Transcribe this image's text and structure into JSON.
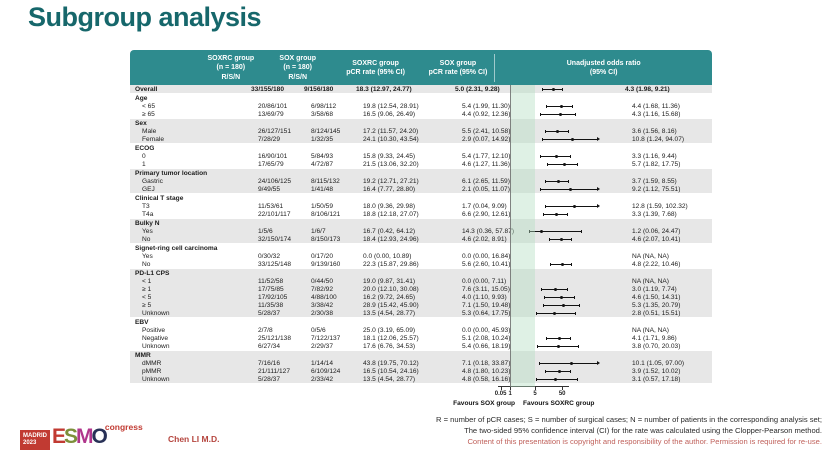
{
  "slide": {
    "title": "Subgroup analysis",
    "presenter": "Chen LI M.D.",
    "footnote_line1": "R = number of pCR cases; S = number of surgical cases; N = number of patients in the corresponding analysis set;",
    "footnote_line2": "The two-sided 95% confidence interval (CI) for the rate was calculated using the Clopper-Pearson method.",
    "copyright": "Content of this presentation is copyright and responsibility of the author. Permission is required for re-use.",
    "logo": {
      "city": "MADRID",
      "year": "2023",
      "letters": [
        {
          "ch": "E",
          "color": "#C13A32"
        },
        {
          "ch": "S",
          "color": "#7C8F3A"
        },
        {
          "ch": "M",
          "color": "#B0368C"
        },
        {
          "ch": "O",
          "color": "#283157"
        }
      ],
      "congress": "congress"
    }
  },
  "colors": {
    "header_teal": "#2E8B8E",
    "title_teal": "#16676B",
    "row_gray": "#E7E7E7",
    "band_green": "#B2DDC1",
    "accent_red": "#C0504D"
  },
  "table": {
    "header": {
      "col_soxrc_rsn": [
        "SOXRC group",
        "(n = 180)",
        "R/S/N"
      ],
      "col_sox_rsn": [
        "SOX group",
        "(n = 180)",
        "R/S/N"
      ],
      "col_soxrc_pcr": [
        "SOXRC group",
        "pCR rate (95% CI)"
      ],
      "col_sox_pcr": [
        "SOX group",
        "pCR rate (95% CI)"
      ],
      "col_or": [
        "Unadjusted odds ratio",
        "(95% CI)"
      ]
    },
    "axis": {
      "ticks": [
        0.05,
        1,
        5,
        50
      ],
      "tick_labels": [
        "0.05",
        "1",
        "5",
        "50"
      ],
      "reference_line": 1,
      "highlight_band": [
        1,
        5
      ],
      "favours_left": "Favours SOX group",
      "favours_right": "Favours SOXRC group"
    },
    "rows": [
      {
        "type": "overall",
        "label": "Overall",
        "soxrc_rsn": "33/155/180",
        "sox_rsn": "9/156/180",
        "soxrc_pcr": "18.3 (12.97, 24.77)",
        "sox_pcr": "5.0 (2.31, 9.28)",
        "or_text": "4.3 (1.98, 9.21)",
        "or": 4.3,
        "lo": 1.98,
        "hi": 9.21
      },
      {
        "type": "group",
        "label": "Age"
      },
      {
        "type": "item",
        "label": "< 65",
        "soxrc_rsn": "20/86/101",
        "sox_rsn": "6/98/112",
        "soxrc_pcr": "19.8 (12.54, 28.91)",
        "sox_pcr": "5.4 (1.99, 11.30)",
        "or_text": "4.4 (1.68, 11.36)",
        "or": 4.4,
        "lo": 1.68,
        "hi": 11.36
      },
      {
        "type": "item",
        "label": "≥ 65",
        "soxrc_rsn": "13/69/79",
        "sox_rsn": "3/58/68",
        "soxrc_pcr": "16.5 (9.06, 26.49)",
        "sox_pcr": "4.4 (0.92, 12.36)",
        "or_text": "4.3 (1.16, 15.68)",
        "or": 4.3,
        "lo": 1.16,
        "hi": 15.68
      },
      {
        "type": "group",
        "label": "Sex"
      },
      {
        "type": "item",
        "label": "Male",
        "soxrc_rsn": "26/127/151",
        "sox_rsn": "8/124/145",
        "soxrc_pcr": "17.2 (11.57, 24.20)",
        "sox_pcr": "5.5 (2.41, 10.58)",
        "or_text": "3.6 (1.56, 8.16)",
        "or": 3.6,
        "lo": 1.56,
        "hi": 8.16
      },
      {
        "type": "item",
        "label": "Female",
        "soxrc_rsn": "7/28/29",
        "sox_rsn": "1/32/35",
        "soxrc_pcr": "24.1 (10.30, 43.54)",
        "sox_pcr": "2.9 (0.07, 14.92)",
        "or_text": "10.8 (1.24, 94.07)",
        "or": 10.8,
        "lo": 1.24,
        "hi": 94.07
      },
      {
        "type": "group",
        "label": "ECOG"
      },
      {
        "type": "item",
        "label": "0",
        "soxrc_rsn": "16/90/101",
        "sox_rsn": "5/84/93",
        "soxrc_pcr": "15.8 (9.33, 24.45)",
        "sox_pcr": "5.4 (1.77, 12.10)",
        "or_text": "3.3 (1.16, 9.44)",
        "or": 3.3,
        "lo": 1.16,
        "hi": 9.44
      },
      {
        "type": "item",
        "label": "1",
        "soxrc_rsn": "17/65/79",
        "sox_rsn": "4/72/87",
        "soxrc_pcr": "21.5 (13.06, 32.20)",
        "sox_pcr": "4.6 (1.27, 11.36)",
        "or_text": "5.7 (1.82, 17.75)",
        "or": 5.7,
        "lo": 1.82,
        "hi": 17.75
      },
      {
        "type": "group",
        "label": "Primary tumor location"
      },
      {
        "type": "item",
        "label": "Gastric",
        "soxrc_rsn": "24/106/125",
        "sox_rsn": "8/115/132",
        "soxrc_pcr": "19.2 (12.71, 27.21)",
        "sox_pcr": "6.1 (2.65, 11.59)",
        "or_text": "3.7 (1.59, 8.55)",
        "or": 3.7,
        "lo": 1.59,
        "hi": 8.55
      },
      {
        "type": "item",
        "label": "GEJ",
        "soxrc_rsn": "9/49/55",
        "sox_rsn": "1/41/48",
        "soxrc_pcr": "16.4 (7.77, 28.80)",
        "sox_pcr": "2.1 (0.05, 11.07)",
        "or_text": "9.2 (1.12, 75.51)",
        "or": 9.2,
        "lo": 1.12,
        "hi": 75.51
      },
      {
        "type": "group",
        "label": "Clinical T stage"
      },
      {
        "type": "item",
        "label": "T3",
        "soxrc_rsn": "11/53/61",
        "sox_rsn": "1/50/59",
        "soxrc_pcr": "18.0 (9.36, 29.98)",
        "sox_pcr": "1.7 (0.04, 9.09)",
        "or_text": "12.8 (1.59, 102.32)",
        "or": 12.8,
        "lo": 1.59,
        "hi": 102.32
      },
      {
        "type": "item",
        "label": "T4a",
        "soxrc_rsn": "22/101/117",
        "sox_rsn": "8/106/121",
        "soxrc_pcr": "18.8 (12.18, 27.07)",
        "sox_pcr": "6.6 (2.90, 12.61)",
        "or_text": "3.3 (1.39, 7.68)",
        "or": 3.3,
        "lo": 1.39,
        "hi": 7.68
      },
      {
        "type": "group",
        "label": "Bulky N"
      },
      {
        "type": "item",
        "label": "Yes",
        "soxrc_rsn": "1/5/6",
        "sox_rsn": "1/6/7",
        "soxrc_pcr": "16.7 (0.42, 64.12)",
        "sox_pcr": "14.3 (0.36, 57.87)",
        "or_text": "1.2 (0.06, 24.47)",
        "or": 1.2,
        "lo": 0.06,
        "hi": 24.47
      },
      {
        "type": "item",
        "label": "No",
        "soxrc_rsn": "32/150/174",
        "sox_rsn": "8/150/173",
        "soxrc_pcr": "18.4 (12.93, 24.96)",
        "sox_pcr": "4.6 (2.02, 8.91)",
        "or_text": "4.6 (2.07, 10.41)",
        "or": 4.6,
        "lo": 2.07,
        "hi": 10.41
      },
      {
        "type": "group",
        "label": "Signet-ring cell carcinoma"
      },
      {
        "type": "item",
        "label": "Yes",
        "soxrc_rsn": "0/30/32",
        "sox_rsn": "0/17/20",
        "soxrc_pcr": "0.0 (0.00, 10.89)",
        "sox_pcr": "0.0 (0.00, 16.84)",
        "or_text": "NA (NA, NA)",
        "or": null,
        "lo": null,
        "hi": null
      },
      {
        "type": "item",
        "label": "No",
        "soxrc_rsn": "33/125/148",
        "sox_rsn": "9/139/160",
        "soxrc_pcr": "22.3 (15.87, 29.86)",
        "sox_pcr": "5.6 (2.60, 10.41)",
        "or_text": "4.8 (2.22, 10.46)",
        "or": 4.8,
        "lo": 2.22,
        "hi": 10.46
      },
      {
        "type": "group",
        "label": "PD-L1 CPS"
      },
      {
        "type": "item",
        "label": "< 1",
        "soxrc_rsn": "11/52/58",
        "sox_rsn": "0/44/50",
        "soxrc_pcr": "19.0 (9.87, 31.41)",
        "sox_pcr": "0.0 (0.00, 7.11)",
        "or_text": "NA (NA, NA)",
        "or": null,
        "lo": null,
        "hi": null
      },
      {
        "type": "item",
        "label": "≥ 1",
        "soxrc_rsn": "17/75/85",
        "sox_rsn": "7/82/92",
        "soxrc_pcr": "20.0 (12.10, 30.08)",
        "sox_pcr": "7.6 (3.11, 15.05)",
        "or_text": "3.0 (1.19, 7.74)",
        "or": 3.0,
        "lo": 1.19,
        "hi": 7.74
      },
      {
        "type": "item",
        "label": "< 5",
        "soxrc_rsn": "17/92/105",
        "sox_rsn": "4/88/100",
        "soxrc_pcr": "16.2 (9.72, 24.65)",
        "sox_pcr": "4.0 (1.10, 9.93)",
        "or_text": "4.6 (1.50, 14.31)",
        "or": 4.6,
        "lo": 1.5,
        "hi": 14.31
      },
      {
        "type": "item",
        "label": "≥ 5",
        "soxrc_rsn": "11/35/38",
        "sox_rsn": "3/38/42",
        "soxrc_pcr": "28.9 (15.42, 45.90)",
        "sox_pcr": "7.1 (1.50, 19.48)",
        "or_text": "5.3 (1.35, 20.79)",
        "or": 5.3,
        "lo": 1.35,
        "hi": 20.79
      },
      {
        "type": "item",
        "label": "Unknown",
        "soxrc_rsn": "5/28/37",
        "sox_rsn": "2/30/38",
        "soxrc_pcr": "13.5 (4.54, 28.77)",
        "sox_pcr": "5.3 (0.64, 17.75)",
        "or_text": "2.8 (0.51, 15.51)",
        "or": 2.8,
        "lo": 0.51,
        "hi": 15.51
      },
      {
        "type": "group",
        "label": "EBV"
      },
      {
        "type": "item",
        "label": "Positive",
        "soxrc_rsn": "2/7/8",
        "sox_rsn": "0/5/6",
        "soxrc_pcr": "25.0 (3.19, 65.09)",
        "sox_pcr": "0.0 (0.00, 45.93)",
        "or_text": "NA (NA, NA)",
        "or": null,
        "lo": null,
        "hi": null
      },
      {
        "type": "item",
        "label": "Negative",
        "soxrc_rsn": "25/121/138",
        "sox_rsn": "7/122/137",
        "soxrc_pcr": "18.1 (12.06, 25.57)",
        "sox_pcr": "5.1 (2.08, 10.24)",
        "or_text": "4.1 (1.71, 9.86)",
        "or": 4.1,
        "lo": 1.71,
        "hi": 9.86
      },
      {
        "type": "item",
        "label": "Unknown",
        "soxrc_rsn": "6/27/34",
        "sox_rsn": "2/29/37",
        "soxrc_pcr": "17.6 (6.76, 34.53)",
        "sox_pcr": "5.4 (0.66, 18.19)",
        "or_text": "3.8 (0.70, 20.03)",
        "or": 3.8,
        "lo": 0.7,
        "hi": 20.03
      },
      {
        "type": "group",
        "label": "MMR"
      },
      {
        "type": "item",
        "label": "dMMR",
        "soxrc_rsn": "7/16/16",
        "sox_rsn": "1/14/14",
        "soxrc_pcr": "43.8 (19.75, 70.12)",
        "sox_pcr": "7.1 (0.18, 33.87)",
        "or_text": "10.1 (1.05, 97.00)",
        "or": 10.1,
        "lo": 1.05,
        "hi": 97.0
      },
      {
        "type": "item",
        "label": "pMMR",
        "soxrc_rsn": "21/111/127",
        "sox_rsn": "6/109/124",
        "soxrc_pcr": "16.5 (10.54, 24.16)",
        "sox_pcr": "4.8 (1.80, 10.23)",
        "or_text": "3.9 (1.52, 10.02)",
        "or": 3.9,
        "lo": 1.52,
        "hi": 10.02
      },
      {
        "type": "item",
        "label": "Unknown",
        "soxrc_rsn": "5/28/37",
        "sox_rsn": "2/33/42",
        "soxrc_pcr": "13.5 (4.54, 28.77)",
        "sox_pcr": "4.8 (0.58, 16.16)",
        "or_text": "3.1 (0.57, 17.18)",
        "or": 3.1,
        "lo": 0.57,
        "hi": 17.18
      }
    ]
  },
  "chart_data": {
    "type": "scatter",
    "subtype": "forest-plot",
    "title": "Unadjusted odds ratio (95% CI)",
    "x_scale": "log",
    "x_ticks": [
      0.05,
      1,
      5,
      50
    ],
    "reference_line": 1,
    "highlight_band": [
      1,
      5
    ],
    "xlabel_left": "Favours SOX group",
    "xlabel_right": "Favours SOXRC group",
    "points": [
      {
        "subgroup": "Overall",
        "or": 4.3,
        "lo": 1.98,
        "hi": 9.21
      },
      {
        "subgroup": "Age < 65",
        "or": 4.4,
        "lo": 1.68,
        "hi": 11.36
      },
      {
        "subgroup": "Age ≥ 65",
        "or": 4.3,
        "lo": 1.16,
        "hi": 15.68
      },
      {
        "subgroup": "Sex Male",
        "or": 3.6,
        "lo": 1.56,
        "hi": 8.16
      },
      {
        "subgroup": "Sex Female",
        "or": 10.8,
        "lo": 1.24,
        "hi": 94.07
      },
      {
        "subgroup": "ECOG 0",
        "or": 3.3,
        "lo": 1.16,
        "hi": 9.44
      },
      {
        "subgroup": "ECOG 1",
        "or": 5.7,
        "lo": 1.82,
        "hi": 17.75
      },
      {
        "subgroup": "Primary tumor location Gastric",
        "or": 3.7,
        "lo": 1.59,
        "hi": 8.55
      },
      {
        "subgroup": "Primary tumor location GEJ",
        "or": 9.2,
        "lo": 1.12,
        "hi": 75.51
      },
      {
        "subgroup": "Clinical T stage T3",
        "or": 12.8,
        "lo": 1.59,
        "hi": 102.32
      },
      {
        "subgroup": "Clinical T stage T4a",
        "or": 3.3,
        "lo": 1.39,
        "hi": 7.68
      },
      {
        "subgroup": "Bulky N Yes",
        "or": 1.2,
        "lo": 0.06,
        "hi": 24.47
      },
      {
        "subgroup": "Bulky N No",
        "or": 4.6,
        "lo": 2.07,
        "hi": 10.41
      },
      {
        "subgroup": "Signet-ring cell carcinoma Yes",
        "or": null,
        "lo": null,
        "hi": null
      },
      {
        "subgroup": "Signet-ring cell carcinoma No",
        "or": 4.8,
        "lo": 2.22,
        "hi": 10.46
      },
      {
        "subgroup": "PD-L1 CPS < 1",
        "or": null,
        "lo": null,
        "hi": null
      },
      {
        "subgroup": "PD-L1 CPS ≥ 1",
        "or": 3.0,
        "lo": 1.19,
        "hi": 7.74
      },
      {
        "subgroup": "PD-L1 CPS < 5",
        "or": 4.6,
        "lo": 1.5,
        "hi": 14.31
      },
      {
        "subgroup": "PD-L1 CPS ≥ 5",
        "or": 5.3,
        "lo": 1.35,
        "hi": 20.79
      },
      {
        "subgroup": "PD-L1 CPS Unknown",
        "or": 2.8,
        "lo": 0.51,
        "hi": 15.51
      },
      {
        "subgroup": "EBV Positive",
        "or": null,
        "lo": null,
        "hi": null
      },
      {
        "subgroup": "EBV Negative",
        "or": 4.1,
        "lo": 1.71,
        "hi": 9.86
      },
      {
        "subgroup": "EBV Unknown",
        "or": 3.8,
        "lo": 0.7,
        "hi": 20.03
      },
      {
        "subgroup": "MMR dMMR",
        "or": 10.1,
        "lo": 1.05,
        "hi": 97.0
      },
      {
        "subgroup": "MMR pMMR",
        "or": 3.9,
        "lo": 1.52,
        "hi": 10.02
      },
      {
        "subgroup": "MMR Unknown",
        "or": 3.1,
        "lo": 0.57,
        "hi": 17.18
      }
    ]
  }
}
